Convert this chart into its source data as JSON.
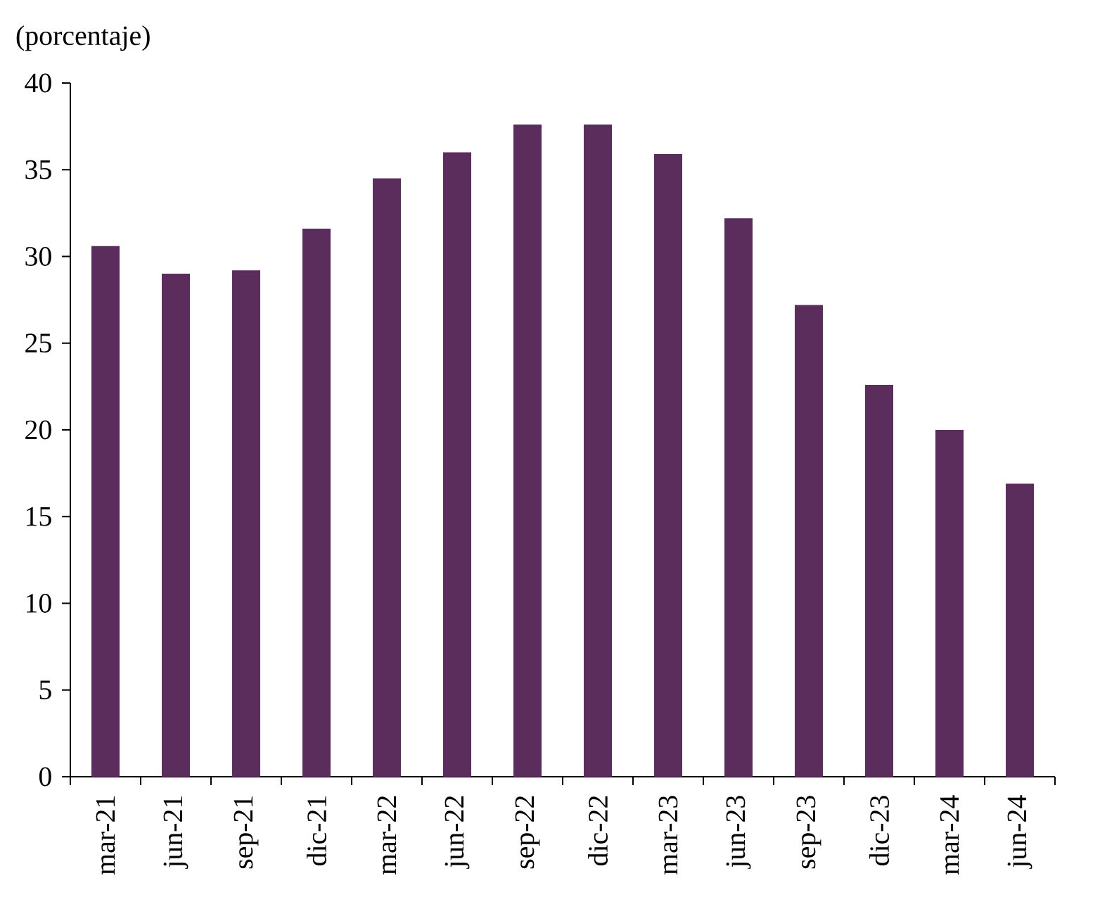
{
  "chart_data": {
    "type": "bar",
    "ylabel": "(porcentaje)",
    "categories": [
      "mar-21",
      "jun-21",
      "sep-21",
      "dic-21",
      "mar-22",
      "jun-22",
      "sep-22",
      "dic-22",
      "mar-23",
      "jun-23",
      "sep-23",
      "dic-23",
      "mar-24",
      "jun-24"
    ],
    "values": [
      30.6,
      29.0,
      29.2,
      31.6,
      34.5,
      36.0,
      37.6,
      37.6,
      35.9,
      32.2,
      27.2,
      22.6,
      20.0,
      16.9
    ],
    "color": "#5a2d5c",
    "ylim": [
      0,
      40
    ],
    "yticks": [
      0,
      5,
      10,
      15,
      20,
      25,
      30,
      35,
      40
    ]
  }
}
